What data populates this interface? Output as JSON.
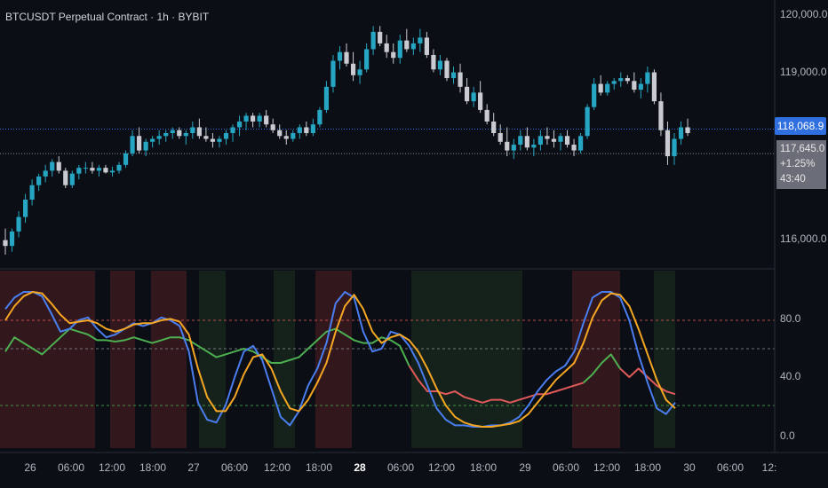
{
  "title": "BTCUSDT Perpetual Contract · 1h · BYBIT",
  "price_axis": {
    "ticks": [
      "120,000.0",
      "119,000.0",
      "116,000.0"
    ],
    "current_price_label": "118,068.9",
    "last_price": "117,645.0",
    "change": "+1.25%",
    "countdown": "43:40"
  },
  "indicator_axis": {
    "ticks": [
      "80.0",
      "40.0",
      "0.0"
    ]
  },
  "time_axis": {
    "labels": [
      "26",
      "06:00",
      "12:00",
      "18:00",
      "27",
      "06:00",
      "12:00",
      "18:00",
      "28",
      "06:00",
      "12:00",
      "18:00",
      "29",
      "06:00",
      "12:00",
      "18:00",
      "30",
      "06:00",
      "12:"
    ],
    "bold_label": "28"
  },
  "colors": {
    "background": "#0b0e15",
    "up": "#26a6c2",
    "down": "#c9cbd0",
    "blue_line": "#4a7ef0",
    "orange_line": "#f5a623",
    "green_line": "#4caf50",
    "red_line": "#e05a5a",
    "red_zone": "#3a1a1f",
    "green_zone": "#17261c",
    "price_tag": "#2f6fe0"
  },
  "chart_data": [
    {
      "type": "candlestick",
      "title": "BTCUSDT Perpetual Contract · 1h · BYBIT",
      "ylim": [
        115700,
        120300
      ],
      "yticks": [
        116000,
        119000,
        120000
      ],
      "current_price": 118068.9,
      "last_price": 117645.0,
      "candles": [
        [
          116150,
          116350,
          115900,
          116050
        ],
        [
          116050,
          116350,
          115950,
          116300
        ],
        [
          116300,
          116650,
          116200,
          116550
        ],
        [
          116550,
          116950,
          116450,
          116850
        ],
        [
          116850,
          117200,
          116750,
          117100
        ],
        [
          117100,
          117300,
          117000,
          117250
        ],
        [
          117250,
          117450,
          117150,
          117350
        ],
        [
          117350,
          117550,
          117250,
          117500
        ],
        [
          117500,
          117600,
          117300,
          117350
        ],
        [
          117350,
          117400,
          117050,
          117100
        ],
        [
          117100,
          117350,
          117050,
          117300
        ],
        [
          117300,
          117450,
          117200,
          117400
        ],
        [
          117400,
          117500,
          117300,
          117400
        ],
        [
          117400,
          117500,
          117300,
          117350
        ],
        [
          117350,
          117450,
          117250,
          117400
        ],
        [
          117400,
          117450,
          117300,
          117320
        ],
        [
          117320,
          117420,
          117250,
          117350
        ],
        [
          117350,
          117500,
          117300,
          117450
        ],
        [
          117450,
          117700,
          117400,
          117650
        ],
        [
          117650,
          118050,
          117600,
          117950
        ],
        [
          117950,
          118100,
          117650,
          117700
        ],
        [
          117700,
          117900,
          117600,
          117850
        ],
        [
          117850,
          117950,
          117750,
          117900
        ],
        [
          117900,
          118050,
          117800,
          117950
        ],
        [
          117950,
          118050,
          117850,
          118000
        ],
        [
          118000,
          118100,
          117900,
          118050
        ],
        [
          118050,
          118100,
          117900,
          117950
        ],
        [
          117950,
          118050,
          117800,
          118000
        ],
        [
          118000,
          118200,
          117900,
          118100
        ],
        [
          118100,
          118250,
          117900,
          117950
        ],
        [
          117950,
          118100,
          117850,
          117900
        ],
        [
          117900,
          118000,
          117750,
          117850
        ],
        [
          117850,
          117950,
          117750,
          117900
        ],
        [
          117900,
          118050,
          117800,
          118000
        ],
        [
          118000,
          118150,
          117850,
          118100
        ],
        [
          118100,
          118300,
          117950,
          118200
        ],
        [
          118200,
          118350,
          118050,
          118300
        ],
        [
          118300,
          118350,
          118100,
          118200
        ],
        [
          118200,
          118350,
          118100,
          118300
        ],
        [
          118300,
          118400,
          118100,
          118150
        ],
        [
          118150,
          118250,
          118000,
          118050
        ],
        [
          118050,
          118150,
          117900,
          117950
        ],
        [
          117950,
          118050,
          117800,
          117900
        ],
        [
          117900,
          118050,
          117850,
          118000
        ],
        [
          118000,
          118150,
          117900,
          118100
        ],
        [
          118100,
          118200,
          117950,
          118000
        ],
        [
          118000,
          118250,
          117950,
          118150
        ],
        [
          118150,
          118450,
          118100,
          118400
        ],
        [
          118400,
          118900,
          118350,
          118800
        ],
        [
          118800,
          119350,
          118700,
          119250
        ],
        [
          119250,
          119500,
          119100,
          119400
        ],
        [
          119400,
          119550,
          119150,
          119200
        ],
        [
          119200,
          119400,
          118900,
          119000
        ],
        [
          119000,
          119250,
          118850,
          119100
        ],
        [
          119100,
          119550,
          119050,
          119450
        ],
        [
          119450,
          119850,
          119350,
          119750
        ],
        [
          119750,
          119850,
          119500,
          119550
        ],
        [
          119550,
          119700,
          119300,
          119400
        ],
        [
          119400,
          119550,
          119200,
          119300
        ],
        [
          119300,
          119700,
          119200,
          119600
        ],
        [
          119600,
          119800,
          119400,
          119450
        ],
        [
          119450,
          119650,
          119350,
          119550
        ],
        [
          119550,
          119800,
          119400,
          119650
        ],
        [
          119650,
          119750,
          119300,
          119350
        ],
        [
          119350,
          119450,
          119050,
          119100
        ],
        [
          119100,
          119350,
          119000,
          119250
        ],
        [
          119250,
          119300,
          118900,
          118950
        ],
        [
          118950,
          119150,
          118850,
          119050
        ],
        [
          119050,
          119200,
          118700,
          118800
        ],
        [
          118800,
          118950,
          118500,
          118550
        ],
        [
          118550,
          118800,
          118450,
          118700
        ],
        [
          118700,
          118900,
          118350,
          118400
        ],
        [
          118400,
          118500,
          118150,
          118200
        ],
        [
          118200,
          118350,
          117950,
          118000
        ],
        [
          118000,
          118150,
          117800,
          117850
        ],
        [
          117850,
          118100,
          117600,
          117700
        ],
        [
          117700,
          117900,
          117550,
          117800
        ],
        [
          117800,
          118050,
          117700,
          117950
        ],
        [
          117950,
          118100,
          117700,
          117750
        ],
        [
          117750,
          117900,
          117600,
          117800
        ],
        [
          117800,
          118050,
          117700,
          117950
        ],
        [
          117950,
          118100,
          117800,
          117900
        ],
        [
          117900,
          118050,
          117750,
          117850
        ],
        [
          117850,
          118000,
          117700,
          117950
        ],
        [
          117950,
          118050,
          117750,
          117800
        ],
        [
          117800,
          117900,
          117600,
          117700
        ],
        [
          117700,
          118000,
          117650,
          117950
        ],
        [
          117950,
          118500,
          117900,
          118450
        ],
        [
          118450,
          118950,
          118400,
          118850
        ],
        [
          118850,
          119000,
          118650,
          118700
        ],
        [
          118700,
          118900,
          118650,
          118850
        ],
        [
          118850,
          118950,
          118750,
          118900
        ],
        [
          118900,
          119050,
          118800,
          118950
        ],
        [
          118950,
          119000,
          118850,
          118900
        ],
        [
          118900,
          119050,
          118700,
          118750
        ],
        [
          118750,
          118950,
          118600,
          118850
        ],
        [
          118850,
          119150,
          118700,
          119050
        ],
        [
          119050,
          119100,
          118500,
          118550
        ],
        [
          118550,
          118700,
          117950,
          118050
        ],
        [
          118050,
          118200,
          117450,
          117600
        ],
        [
          117600,
          118000,
          117450,
          117900
        ],
        [
          117900,
          118200,
          117800,
          118100
        ],
        [
          118100,
          118250,
          117950,
          118000
        ]
      ]
    },
    {
      "type": "line",
      "ylim": [
        -10,
        115
      ],
      "yticks": [
        0,
        40,
        80
      ],
      "reference_levels": [
        80,
        60,
        20
      ],
      "series": [
        {
          "color": "blue",
          "values": [
            88,
            96,
            100,
            100,
            97,
            85,
            72,
            74,
            80,
            82,
            74,
            68,
            70,
            74,
            78,
            76,
            78,
            82,
            80,
            76,
            58,
            22,
            10,
            8,
            20,
            40,
            58,
            62,
            52,
            32,
            12,
            6,
            16,
            34,
            46,
            64,
            92,
            100,
            96,
            72,
            58,
            60,
            72,
            70,
            62,
            50,
            34,
            18,
            10,
            6,
            6,
            5,
            5,
            6,
            6,
            8,
            12,
            20,
            30,
            38,
            44,
            48,
            58,
            78,
            96,
            100,
            100,
            96,
            80,
            56,
            36,
            18,
            14,
            22
          ]
        },
        {
          "color": "orange",
          "values": [
            80,
            90,
            97,
            100,
            99,
            92,
            84,
            78,
            79,
            80,
            78,
            74,
            72,
            74,
            77,
            78,
            78,
            80,
            81,
            79,
            70,
            46,
            26,
            16,
            16,
            26,
            42,
            54,
            56,
            46,
            30,
            18,
            16,
            24,
            36,
            50,
            72,
            90,
            98,
            88,
            72,
            64,
            68,
            70,
            66,
            58,
            46,
            32,
            20,
            12,
            8,
            6,
            5,
            5,
            6,
            7,
            9,
            14,
            22,
            30,
            38,
            44,
            50,
            64,
            82,
            94,
            99,
            98,
            90,
            74,
            56,
            38,
            24,
            18
          ]
        },
        {
          "color": "green/red",
          "values": [
            58,
            68,
            64,
            60,
            56,
            62,
            68,
            74,
            72,
            70,
            66,
            66,
            65,
            66,
            68,
            66,
            64,
            66,
            68,
            68,
            66,
            62,
            58,
            54,
            56,
            58,
            60,
            58,
            54,
            50,
            50,
            52,
            54,
            60,
            66,
            72,
            74,
            70,
            66,
            64,
            64,
            68,
            66,
            62,
            48,
            38,
            30,
            30,
            28,
            30,
            26,
            24,
            22,
            24,
            24,
            22,
            24,
            26,
            28,
            28,
            30,
            32,
            34,
            36,
            42,
            50,
            56,
            46,
            40,
            46,
            40,
            34,
            30,
            28
          ]
        }
      ]
    }
  ]
}
